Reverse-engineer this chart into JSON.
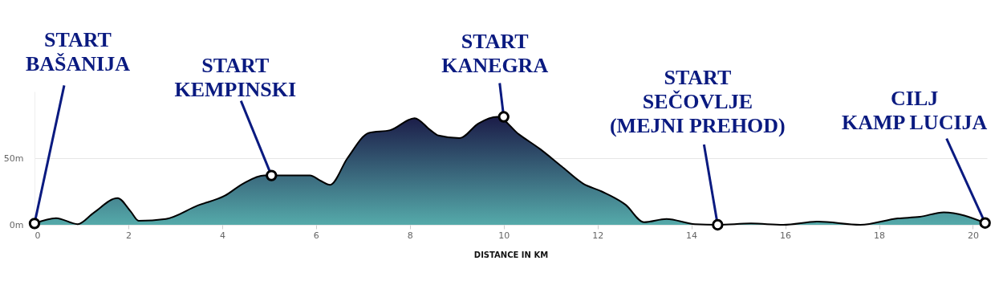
{
  "chart_data": {
    "type": "area",
    "xlabel": "DISTANCE IN KM",
    "series": [
      {
        "color": "#55aaaa",
        "x": [
          0,
          0.46,
          0.92,
          1.26,
          1.77,
          2.05,
          2.22,
          2.8,
          3.48,
          4.05,
          4.45,
          4.9,
          5.47,
          5.87,
          6.1,
          6.3,
          6.67,
          7.13,
          7.58,
          8.1,
          8.44,
          8.61,
          9.06,
          9.46,
          9.86,
          10.32,
          10.77,
          11.23,
          11.69,
          12.09,
          12.6,
          12.99,
          13.47,
          14.08,
          14.56,
          15.27,
          15.96,
          16.7,
          17.6,
          18.4,
          18.87,
          19.38,
          20.26
        ],
        "values": [
          1,
          5,
          0.5,
          9,
          20,
          10,
          3,
          4.4,
          14.5,
          21.7,
          31,
          37,
          37,
          37,
          33,
          30,
          50,
          69,
          71,
          80,
          71,
          67,
          65,
          76,
          81,
          68,
          57,
          44,
          31,
          25,
          15,
          2,
          4.4,
          0.4,
          0,
          1,
          0,
          2.4,
          0,
          4.8,
          6,
          9.4,
          1.4
        ]
      }
    ],
    "xlim": [
      0,
      20.3
    ],
    "xticks": [
      0,
      2,
      4,
      6,
      8,
      10,
      12,
      14,
      16,
      18,
      20
    ],
    "ylim": [
      0,
      100
    ],
    "yticks": [
      {
        "value": 0,
        "label": "0m"
      },
      {
        "value": 50,
        "label": "50m"
      }
    ],
    "grid": "y",
    "annotations": [
      {
        "text": "START\nBAŠANIJA",
        "x": 0,
        "y": 1
      },
      {
        "text": "START\nKEMPINSKI",
        "x": 5.05,
        "y": 37
      },
      {
        "text": "START\nKANEGRA",
        "x": 10,
        "y": 81
      },
      {
        "text": "START\nSEČOVLJE\n(MEJNI PREHOD)",
        "x": 14.56,
        "y": 0
      },
      {
        "text": "CILJ\nKAMP LUCIJA",
        "x": 20.26,
        "y": 1.4
      }
    ]
  }
}
